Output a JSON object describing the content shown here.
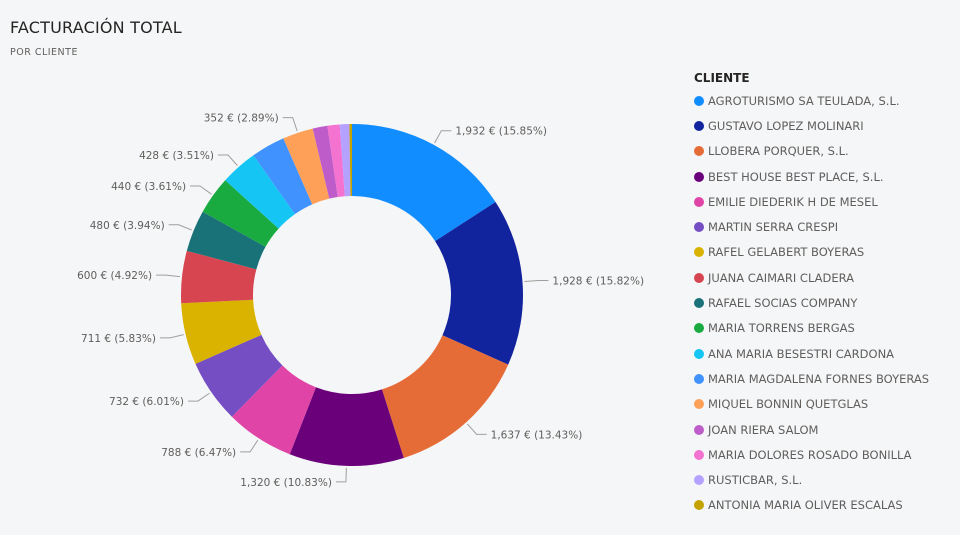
{
  "header": {
    "title": "FACTURACIÓN TOTAL",
    "subtitle": "POR CLIENTE"
  },
  "chart_data": {
    "type": "pie",
    "title": "FACTURACIÓN TOTAL",
    "subtitle": "POR CLIENTE",
    "legend_title": "CLIENTE",
    "legend_position": "right",
    "series": [
      {
        "name": "AGROTURISMO SA TEULADA, S.L.",
        "value": 1932,
        "label": "1,932 € (15.85%)",
        "color": "#118dff"
      },
      {
        "name": "GUSTAVO LOPEZ MOLINARI",
        "value": 1928,
        "label": "1,928 € (15.82%)",
        "color": "#12239e"
      },
      {
        "name": "LLOBERA PORQUER, S.L.",
        "value": 1637,
        "label": "1,637 € (13.43%)",
        "color": "#e66c37"
      },
      {
        "name": "BEST HOUSE BEST PLACE, S.L.",
        "value": 1320,
        "label": "1,320 € (10.83%)",
        "color": "#6b007b"
      },
      {
        "name": "EMILIE DIEDERIK H DE MESEL",
        "value": 788,
        "label": "788 € (6.47%)",
        "color": "#e044a7"
      },
      {
        "name": "MARTIN SERRA CRESPI",
        "value": 732,
        "label": "732 € (6.01%)",
        "color": "#744ec2"
      },
      {
        "name": "RAFEL GELABERT BOYERAS",
        "value": 711,
        "label": "711 € (5.83%)",
        "color": "#d9b300"
      },
      {
        "name": "JUANA CAIMARI CLADERA",
        "value": 600,
        "label": "600 € (4.92%)",
        "color": "#d64550"
      },
      {
        "name": "RAFAEL SOCIAS COMPANY",
        "value": 480,
        "label": "480 € (3.94%)",
        "color": "#197278"
      },
      {
        "name": "MARIA TORRENS BERGAS",
        "value": 440,
        "label": "440 € (3.61%)",
        "color": "#1aab40"
      },
      {
        "name": "ANA MARIA BESESTRI CARDONA",
        "value": 428,
        "label": "428 € (3.51%)",
        "color": "#15c6f4"
      },
      {
        "name": "MARIA MAGDALENA FORNES BOYERAS",
        "value": 390,
        "label": "",
        "color": "#4092ff"
      },
      {
        "name": "MIQUEL BONNIN QUETGLAS",
        "value": 352,
        "label": "352 € (2.89%)",
        "color": "#ffa058"
      },
      {
        "name": "JOAN RIERA SALOM",
        "value": 170,
        "label": "",
        "color": "#be5dc9"
      },
      {
        "name": "MARIA DOLORES ROSADO BONILLA",
        "value": 140,
        "label": "",
        "color": "#f472d0"
      },
      {
        "name": "RUSTICBAR, S.L.",
        "value": 110,
        "label": "",
        "color": "#b5a1ff"
      },
      {
        "name": "ANTONIA MARIA OLIVER ESCALAS",
        "value": 30,
        "label": "",
        "color": "#c4a200"
      }
    ]
  }
}
